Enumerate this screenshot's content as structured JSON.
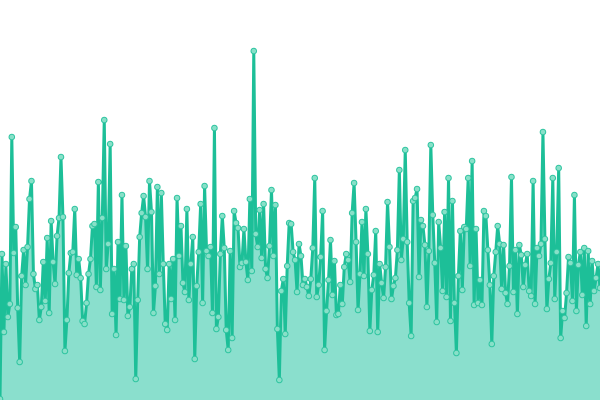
{
  "chart_data": {
    "type": "area",
    "title": "",
    "xlabel": "",
    "ylabel": "",
    "ylim": [
      0,
      400
    ],
    "grid": false,
    "legend": "none",
    "colors": {
      "line": "#1dbf98",
      "fill": "#8adfcd",
      "marker_fill": "#88e0c8",
      "marker_stroke": "#2ec4a0"
    },
    "values": [
      1,
      146,
      68,
      136,
      83,
      96,
      263,
      147,
      173,
      92,
      38,
      124,
      150,
      115,
      153,
      201,
      219,
      126,
      111,
      115,
      80,
      93,
      138,
      99,
      162,
      87,
      179,
      138,
      116,
      164,
      182,
      243,
      183,
      49,
      80,
      127,
      147,
      148,
      191,
      125,
      141,
      122,
      79,
      76,
      97,
      126,
      141,
      174,
      176,
      113,
      218,
      110,
      182,
      280,
      131,
      156,
      256,
      86,
      131,
      65,
      158,
      101,
      205,
      100,
      154,
      84,
      93,
      131,
      136,
      21,
      100,
      163,
      187,
      204,
      183,
      131,
      219,
      188,
      87,
      114,
      213,
      126,
      207,
      136,
      76,
      70,
      136,
      101,
      141,
      80,
      202,
      144,
      174,
      117,
      108,
      191,
      100,
      136,
      163,
      41,
      114,
      148,
      196,
      97,
      214,
      149,
      144,
      153,
      87,
      272,
      71,
      83,
      146,
      184,
      152,
      70,
      50,
      149,
      62,
      189,
      177,
      172,
      133,
      137,
      171,
      138,
      120,
      201,
      129,
      349,
      166,
      153,
      190,
      142,
      196,
      131,
      122,
      154,
      210,
      144,
      195,
      71,
      20,
      109,
      121,
      66,
      134,
      177,
      176,
      148,
      140,
      108,
      156,
      144,
      115,
      121,
      113,
      104,
      121,
      152,
      222,
      103,
      115,
      143,
      189,
      50,
      89,
      120,
      160,
      105,
      139,
      85,
      86,
      115,
      96,
      133,
      146,
      140,
      118,
      187,
      217,
      158,
      90,
      126,
      178,
      124,
      191,
      146,
      69,
      110,
      125,
      169,
      68,
      136,
      117,
      102,
      133,
      198,
      153,
      101,
      114,
      122,
      150,
      230,
      140,
      161,
      250,
      158,
      97,
      64,
      199,
      202,
      211,
      123,
      180,
      174,
      155,
      93,
      149,
      255,
      185,
      137,
      78,
      178,
      152,
      109,
      188,
      103,
      222,
      79,
      199,
      97,
      47,
      124,
      169,
      110,
      173,
      171,
      222,
      134,
      239,
      95,
      171,
      97,
      120,
      95,
      189,
      184,
      150,
      115,
      56,
      124,
      148,
      174,
      156,
      111,
      155,
      107,
      96,
      134,
      223,
      108,
      150,
      86,
      155,
      145,
      113,
      135,
      146,
      109,
      104,
      219,
      96,
      152,
      144,
      156,
      268,
      161,
      91,
      121,
      137,
      222,
      101,
      148,
      232,
      62,
      89,
      82,
      107,
      143,
      137,
      99,
      205,
      89,
      135,
      148,
      105,
      152,
      74,
      149,
      96,
      139,
      109,
      122,
      136,
      112
    ]
  }
}
